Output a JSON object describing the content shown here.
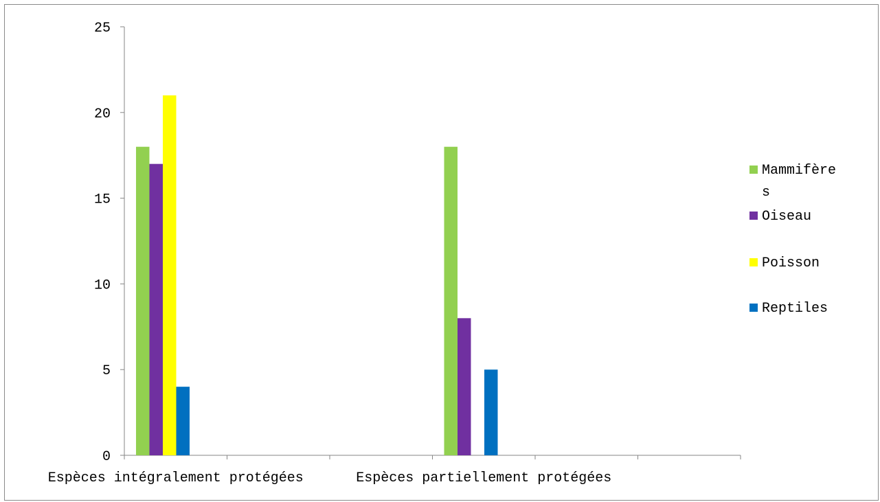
{
  "chart_data": {
    "type": "bar",
    "categories": [
      "Espèces intégralement protégées",
      "",
      "",
      "Espèces partiellement protégées",
      "",
      ""
    ],
    "series": [
      {
        "name": "Mammifères",
        "color": "#92d050",
        "values": [
          18,
          null,
          null,
          18,
          null,
          null
        ]
      },
      {
        "name": "Oiseau",
        "color": "#7030a0",
        "values": [
          17,
          null,
          null,
          8,
          null,
          null
        ]
      },
      {
        "name": "Poisson",
        "color": "#ffff00",
        "values": [
          21,
          null,
          null,
          null,
          null,
          null
        ]
      },
      {
        "name": "Reptiles",
        "color": "#0070c0",
        "values": [
          4,
          null,
          null,
          5,
          null,
          null
        ]
      }
    ],
    "title": "",
    "xlabel": "",
    "ylabel": "",
    "ylim": [
      0,
      25
    ],
    "yticks": [
      "0",
      "5",
      "10",
      "15",
      "20",
      "25"
    ],
    "grid": false,
    "legend_position": "right"
  }
}
